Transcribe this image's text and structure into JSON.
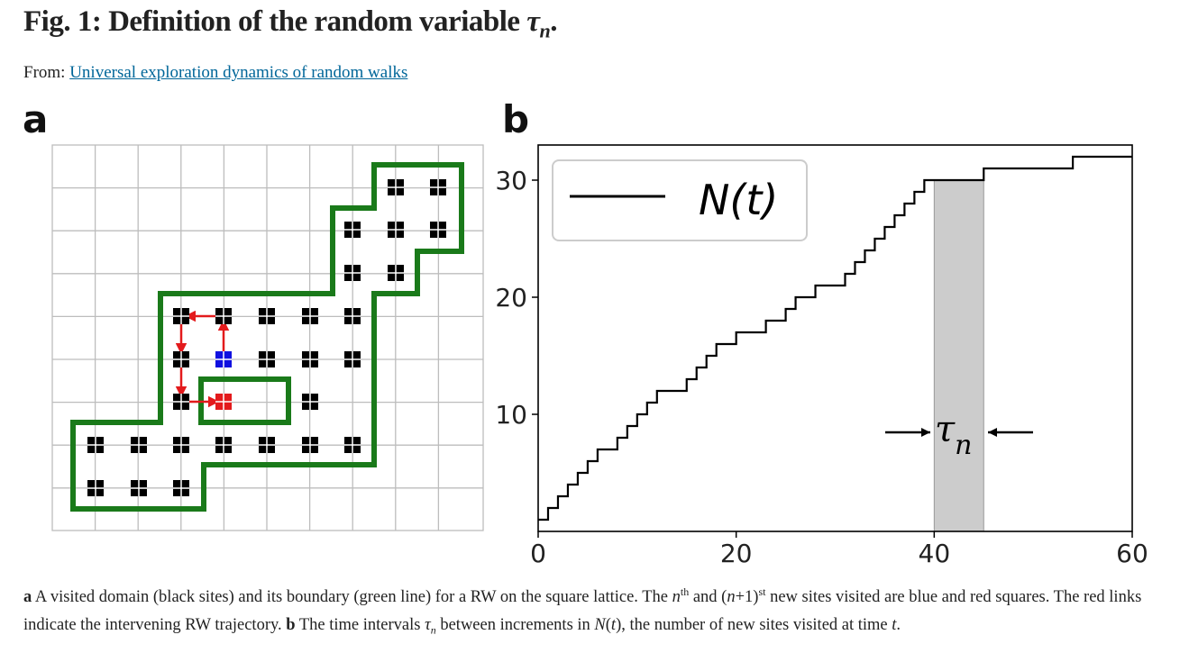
{
  "header": {
    "title_prefix": "Fig. 1: Definition of the random variable ",
    "title_var": "τ",
    "title_sub": "n",
    "title_suffix": ".",
    "from_label": "From: ",
    "article_link": "Universal exploration dynamics of random walks"
  },
  "panels": {
    "a_label": "a",
    "b_label": "b"
  },
  "colors": {
    "link": "#006699",
    "boundary": "#1a7a1a",
    "walk": "#e31a1c",
    "nth_site": "#1010e0",
    "next_site": "#e31a1c",
    "shade": "#cccccc"
  },
  "chart_data": {
    "type": "line",
    "legend": [
      "N(t)"
    ],
    "legend_position": "top-left",
    "xlim": [
      0,
      60
    ],
    "ylim": [
      0,
      33
    ],
    "xticks": [
      0,
      20,
      40,
      60
    ],
    "yticks": [
      10,
      20,
      30
    ],
    "annotation": {
      "label_var": "τ",
      "label_sub": "n",
      "interval": [
        40,
        45
      ]
    },
    "series": [
      {
        "name": "N(t)",
        "step_x": [
          0,
          1,
          2,
          3,
          4,
          5,
          6,
          8,
          9,
          10,
          11,
          12,
          15,
          16,
          17,
          18,
          20,
          23,
          25,
          26,
          28,
          31,
          32,
          33,
          34,
          35,
          36,
          37,
          38,
          39,
          40,
          45,
          54,
          60
        ],
        "step_y": [
          1,
          2,
          3,
          4,
          5,
          6,
          7,
          8,
          9,
          10,
          11,
          12,
          13,
          14,
          15,
          16,
          17,
          18,
          19,
          20,
          21,
          22,
          23,
          24,
          25,
          26,
          27,
          28,
          29,
          30,
          30,
          31,
          32,
          32
        ]
      }
    ]
  },
  "caption": {
    "a_bold": "a",
    "a_text1": " A visited domain (black sites) and its boundary (green line) for a RW on the square lattice. The ",
    "n_var": "n",
    "th_sup": "th",
    "a_text2": " and (",
    "n1_var": "n",
    "a_text3": "+1)",
    "st_sup": "st",
    "a_text4": " new sites visited are blue and red squares. The red links indicate the intervening RW trajectory. ",
    "b_bold": "b",
    "b_text1": " The time intervals ",
    "tau_var": "τ",
    "tau_sub": "n",
    "b_text2": " between increments in ",
    "N_var": "N",
    "b_text3": "(",
    "t_var": "t",
    "b_text4": "), the number of new sites visited at time ",
    "t2_var": "t",
    "b_text5": "."
  }
}
